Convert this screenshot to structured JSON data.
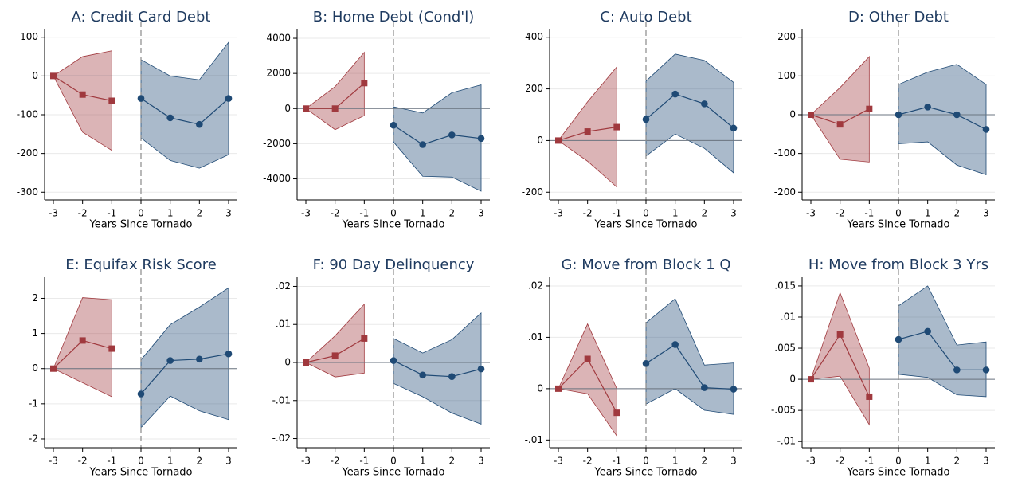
{
  "chart_data": [
    {
      "type": "line",
      "title": "A: Credit Card Debt",
      "xlabel": "Years Since Tornado",
      "xlim": [
        -3.3,
        3.3
      ],
      "xticks": [
        -3,
        -2,
        -1,
        0,
        1,
        2,
        3
      ],
      "ylim": [
        -320,
        120
      ],
      "yticks": [
        100,
        0,
        -100,
        -200,
        -300
      ],
      "grid": true,
      "xline": 0,
      "yline": 0,
      "series": [
        {
          "color": "#a0393e",
          "marker": "square",
          "x": [
            -3,
            -2,
            -1
          ],
          "values": [
            0,
            -48,
            -64
          ],
          "lower": [
            0,
            -145,
            -192
          ],
          "upper": [
            0,
            50,
            65
          ]
        },
        {
          "color": "#1f4a75",
          "marker": "circle",
          "x": [
            0,
            1,
            2,
            3
          ],
          "values": [
            -58,
            -108,
            -125,
            -58
          ],
          "lower": [
            -160,
            -218,
            -238,
            -203
          ],
          "upper": [
            42,
            0,
            -10,
            87
          ]
        }
      ]
    },
    {
      "type": "line",
      "title": "B: Home Debt (Cond'l)",
      "xlabel": "Years Since Tornado",
      "xlim": [
        -3.3,
        3.3
      ],
      "xticks": [
        -3,
        -2,
        -1,
        0,
        1,
        2,
        3
      ],
      "ylim": [
        -5200,
        4500
      ],
      "yticks": [
        4000,
        2000,
        0,
        -2000,
        -4000
      ],
      "grid": true,
      "xline": 0,
      "yline": 0,
      "series": [
        {
          "color": "#a0393e",
          "marker": "square",
          "x": [
            -3,
            -2,
            -1
          ],
          "values": [
            0,
            0,
            1450
          ],
          "lower": [
            0,
            -1200,
            -400
          ],
          "upper": [
            0,
            1250,
            3200
          ]
        },
        {
          "color": "#1f4a75",
          "marker": "circle",
          "x": [
            0,
            1,
            2,
            3
          ],
          "values": [
            -950,
            -2050,
            -1500,
            -1700
          ],
          "lower": [
            -1900,
            -3850,
            -3900,
            -4700
          ],
          "upper": [
            100,
            -250,
            900,
            1350
          ]
        }
      ]
    },
    {
      "type": "line",
      "title": "C: Auto Debt",
      "xlabel": "Years Since Tornado",
      "xlim": [
        -3.3,
        3.3
      ],
      "xticks": [
        -3,
        -2,
        -1,
        0,
        1,
        2,
        3
      ],
      "ylim": [
        -230,
        430
      ],
      "yticks": [
        400,
        200,
        0,
        -200
      ],
      "grid": true,
      "xline": 0,
      "yline": 0,
      "series": [
        {
          "color": "#a0393e",
          "marker": "square",
          "x": [
            -3,
            -2,
            -1
          ],
          "values": [
            0,
            35,
            52
          ],
          "lower": [
            0,
            -80,
            -180
          ],
          "upper": [
            0,
            150,
            285
          ]
        },
        {
          "color": "#1f4a75",
          "marker": "circle",
          "x": [
            0,
            1,
            2,
            3
          ],
          "values": [
            82,
            180,
            142,
            48
          ],
          "lower": [
            -60,
            25,
            -30,
            -125
          ],
          "upper": [
            230,
            335,
            310,
            225
          ]
        }
      ]
    },
    {
      "type": "line",
      "title": "D: Other Debt",
      "xlabel": "Years Since Tornado",
      "xlim": [
        -3.3,
        3.3
      ],
      "xticks": [
        -3,
        -2,
        -1,
        0,
        1,
        2,
        3
      ],
      "ylim": [
        -220,
        220
      ],
      "yticks": [
        200,
        100,
        0,
        -100,
        -200
      ],
      "grid": true,
      "xline": 0,
      "yline": 0,
      "series": [
        {
          "color": "#a0393e",
          "marker": "square",
          "x": [
            -3,
            -2,
            -1
          ],
          "values": [
            0,
            -25,
            15
          ],
          "lower": [
            0,
            -115,
            -122
          ],
          "upper": [
            0,
            70,
            150
          ]
        },
        {
          "color": "#1f4a75",
          "marker": "circle",
          "x": [
            0,
            1,
            2,
            3
          ],
          "values": [
            0,
            20,
            0,
            -38
          ],
          "lower": [
            -75,
            -70,
            -130,
            -155
          ],
          "upper": [
            78,
            110,
            130,
            78
          ]
        }
      ]
    },
    {
      "type": "line",
      "title": "E: Equifax Risk Score",
      "xlabel": "Years Since Tornado",
      "xlim": [
        -3.3,
        3.3
      ],
      "xticks": [
        -3,
        -2,
        -1,
        0,
        1,
        2,
        3
      ],
      "ylim": [
        -2.25,
        2.6
      ],
      "yticks": [
        2,
        1,
        0,
        -1,
        -2
      ],
      "grid": true,
      "xline": 0,
      "yline": 0,
      "series": [
        {
          "color": "#a0393e",
          "marker": "square",
          "x": [
            -3,
            -2,
            -1
          ],
          "values": [
            0,
            0.8,
            0.57
          ],
          "lower": [
            0,
            -0.4,
            -0.8
          ],
          "upper": [
            0,
            2.02,
            1.96
          ]
        },
        {
          "color": "#1f4a75",
          "marker": "circle",
          "x": [
            0,
            1,
            2,
            3
          ],
          "values": [
            -0.72,
            0.23,
            0.27,
            0.42
          ],
          "lower": [
            -1.68,
            -0.78,
            -1.2,
            -1.45
          ],
          "upper": [
            0.25,
            1.25,
            1.75,
            2.3
          ]
        }
      ]
    },
    {
      "type": "line",
      "title": "F: 90 Day Delinquency",
      "xlabel": "Years Since Tornado",
      "xlim": [
        -3.3,
        3.3
      ],
      "xticks": [
        -3,
        -2,
        -1,
        0,
        1,
        2,
        3
      ],
      "ylim": [
        -0.0224,
        0.0224
      ],
      "yticks": [
        {
          "value": 0.02,
          "label": ".02"
        },
        {
          "value": 0.01,
          "label": ".01"
        },
        0,
        {
          "value": -0.01,
          "label": "-.01"
        },
        {
          "value": -0.02,
          "label": "-.02"
        }
      ],
      "grid": true,
      "xline": 0,
      "yline": 0,
      "series": [
        {
          "color": "#a0393e",
          "marker": "square",
          "x": [
            -3,
            -2,
            -1
          ],
          "values": [
            0,
            0.0018,
            0.0063
          ],
          "lower": [
            0,
            -0.0038,
            -0.0028
          ],
          "upper": [
            0,
            0.007,
            0.0153
          ]
        },
        {
          "color": "#1f4a75",
          "marker": "circle",
          "x": [
            0,
            1,
            2,
            3
          ],
          "values": [
            0.0005,
            -0.0033,
            -0.0037,
            -0.0017
          ],
          "lower": [
            -0.0055,
            -0.009,
            -0.0133,
            -0.0162
          ],
          "upper": [
            0.0063,
            0.0025,
            0.006,
            0.013
          ]
        }
      ]
    },
    {
      "type": "line",
      "title": "G: Move from Block 1 Q",
      "xlabel": "Years Since Tornado",
      "xlim": [
        -3.3,
        3.3
      ],
      "xticks": [
        -3,
        -2,
        -1,
        0,
        1,
        2,
        3
      ],
      "ylim": [
        -0.0115,
        0.0217
      ],
      "yticks": [
        {
          "value": 0.02,
          "label": ".02"
        },
        {
          "value": 0.01,
          "label": ".01"
        },
        0,
        {
          "value": -0.01,
          "label": "-.01"
        }
      ],
      "grid": true,
      "xline": 0,
      "yline": 0,
      "series": [
        {
          "color": "#a0393e",
          "marker": "square",
          "x": [
            -3,
            -2,
            -1
          ],
          "values": [
            0,
            0.0058,
            -0.0047
          ],
          "lower": [
            0,
            -0.001,
            -0.0092
          ],
          "upper": [
            0,
            0.0126,
            0
          ]
        },
        {
          "color": "#1f4a75",
          "marker": "circle",
          "x": [
            0,
            1,
            2,
            3
          ],
          "values": [
            0.0049,
            0.0086,
            0.0002,
            -0.0001
          ],
          "lower": [
            -0.003,
            0,
            -0.0042,
            -0.005
          ],
          "upper": [
            0.0128,
            0.0175,
            0.0046,
            0.005
          ]
        }
      ]
    },
    {
      "type": "line",
      "title": "H: Move from Block 3 Yrs",
      "xlabel": "Years Since Tornado",
      "xlim": [
        -3.3,
        3.3
      ],
      "xticks": [
        -3,
        -2,
        -1,
        0,
        1,
        2,
        3
      ],
      "ylim": [
        -0.011,
        0.0164
      ],
      "yticks": [
        {
          "value": 0.015,
          "label": ".015"
        },
        {
          "value": 0.01,
          "label": ".01"
        },
        {
          "value": 0.005,
          "label": ".005"
        },
        0,
        {
          "value": -0.005,
          "label": "-.005"
        },
        {
          "value": -0.01,
          "label": "-.01"
        }
      ],
      "grid": true,
      "xline": 0,
      "yline": 0,
      "series": [
        {
          "color": "#a0393e",
          "marker": "square",
          "x": [
            -3,
            -2,
            -1
          ],
          "values": [
            0,
            0.0072,
            -0.0028
          ],
          "lower": [
            0,
            0.0005,
            -0.0073
          ],
          "upper": [
            0,
            0.0139,
            0.0018
          ]
        },
        {
          "color": "#1f4a75",
          "marker": "circle",
          "x": [
            0,
            1,
            2,
            3
          ],
          "values": [
            0.0064,
            0.0077,
            0.0015,
            0.0015
          ],
          "lower": [
            0.0008,
            0.0003,
            -0.0025,
            -0.0028
          ],
          "upper": [
            0.0118,
            0.015,
            0.0055,
            0.006
          ]
        }
      ]
    }
  ]
}
